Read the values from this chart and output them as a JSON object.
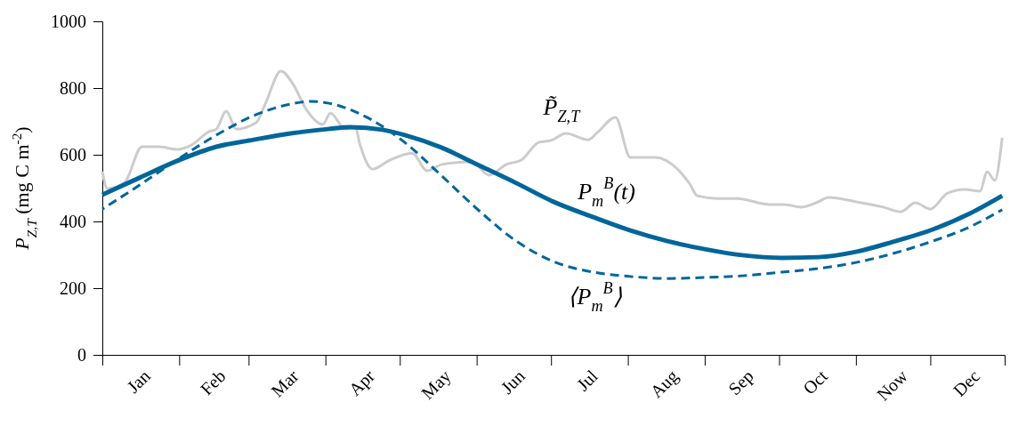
{
  "chart_data": {
    "type": "line",
    "ylabel": "P$_{Z,T}$ (mg C m$^{-2}$)",
    "xlim": [
      "--01-01",
      "--12-31"
    ],
    "ylim": [
      0,
      1000
    ],
    "yticks": [
      0,
      200,
      400,
      600,
      800,
      1000
    ],
    "xticks": [
      {
        "value": "--01-01",
        "label": null
      },
      {
        "value": "--01-16",
        "label": "Jan"
      },
      {
        "value": "--02-01",
        "label": null
      },
      {
        "value": "--02-15",
        "label": "Feb"
      },
      {
        "value": "--03-01",
        "label": null
      },
      {
        "value": "--03-16",
        "label": "Mar"
      },
      {
        "value": "--04-01",
        "label": null
      },
      {
        "value": "--04-16",
        "label": "Apr"
      },
      {
        "value": "--05-01",
        "label": null
      },
      {
        "value": "--05-16",
        "label": "May"
      },
      {
        "value": "--06-01",
        "label": null
      },
      {
        "value": "--06-16",
        "label": "Jun"
      },
      {
        "value": "--07-01",
        "label": null
      },
      {
        "value": "--07-16",
        "label": "Jul"
      },
      {
        "value": "--08-01",
        "label": null
      },
      {
        "value": "--08-16",
        "label": "Aug"
      },
      {
        "value": "--09-01",
        "label": null
      },
      {
        "value": "--09-16",
        "label": "Sep"
      },
      {
        "value": "--10-01",
        "label": null
      },
      {
        "value": "--10-16",
        "label": "Oct"
      },
      {
        "value": "--11-01",
        "label": null
      },
      {
        "value": "--11-16",
        "label": "Now"
      },
      {
        "value": "--12-01",
        "label": null
      },
      {
        "value": "--12-16",
        "label": "Dec"
      }
    ],
    "marker": "none",
    "series": [
      {
        "name": "P̃$_{Z,T}$",
        "color": "#cccccc",
        "line_style": "solid",
        "x": [
          "--01-01",
          "--01-03",
          "--01-10",
          "--01-17",
          "--01-24",
          "--01-31",
          "--02-06",
          "--02-13",
          "--02-16",
          "--02-20",
          "--02-24",
          "--03-04",
          "--03-08",
          "--03-14",
          "--03-19",
          "--03-24",
          "--03-31",
          "--04-03",
          "--04-09",
          "--04-13",
          "--04-15",
          "--04-20",
          "--04-27",
          "--05-06",
          "--05-12",
          "--05-18",
          "--05-30",
          "--06-06",
          "--06-13",
          "--06-19",
          "--06-26",
          "--07-01",
          "--07-07",
          "--07-16",
          "--07-20",
          "--07-27",
          "--08-02",
          "--08-12",
          "--08-21",
          "--08-26",
          "--08-29",
          "--09-06",
          "--09-14",
          "--09-27",
          "--10-03",
          "--10-10",
          "--10-16",
          "--10-21",
          "--11-01",
          "--11-12",
          "--11-19",
          "--11-25",
          "--12-01",
          "--12-08",
          "--12-15",
          "--12-21",
          "--12-24",
          "--12-27",
          "--12-30"
        ],
        "values": [
          549,
          499,
          517,
          624,
          624,
          616,
          629,
          669,
          677,
          731,
          677,
          696,
          757,
          851,
          811,
          739,
          691,
          725,
          677,
          683,
          629,
          557,
          584,
          605,
          552,
          571,
          579,
          539,
          571,
          584,
          637,
          643,
          664,
          645,
          669,
          712,
          592,
          592,
          557,
          512,
          477,
          469,
          469,
          451,
          451,
          443,
          456,
          472,
          459,
          443,
          429,
          456,
          437,
          485,
          496,
          491,
          549,
          523,
          651
        ]
      },
      {
        "name": "⟨P$_{m}$$^{B}$⟩",
        "color": "#00669a",
        "line_style": "dashed",
        "x": [
          "--01-01",
          "--01-16",
          "--01-31",
          "--02-16",
          "--03-03",
          "--03-18",
          "--03-26",
          "--04-02",
          "--04-17",
          "--05-03",
          "--05-18",
          "--06-02",
          "--06-17",
          "--07-02",
          "--07-18",
          "--08-02",
          "--08-17",
          "--09-01",
          "--09-16",
          "--10-02",
          "--10-17",
          "--11-01",
          "--11-16",
          "--12-02",
          "--12-17",
          "--12-30"
        ],
        "values": [
          437,
          509,
          584,
          659,
          717,
          752,
          760,
          755,
          715,
          637,
          536,
          432,
          341,
          280,
          248,
          235,
          229,
          232,
          237,
          248,
          259,
          277,
          304,
          341,
          384,
          435
        ]
      },
      {
        "name": "P$_{m}$$^{B}$(t)",
        "color": "#00669a",
        "line_style": "solid",
        "x": [
          "--01-01",
          "--01-16",
          "--01-31",
          "--02-16",
          "--03-03",
          "--03-18",
          "--04-02",
          "--04-11",
          "--04-24",
          "--05-03",
          "--05-18",
          "--06-02",
          "--06-17",
          "--07-02",
          "--07-18",
          "--08-02",
          "--08-17",
          "--09-01",
          "--09-16",
          "--10-02",
          "--10-17",
          "--11-01",
          "--11-16",
          "--12-02",
          "--12-17",
          "--12-30"
        ],
        "values": [
          480,
          531,
          581,
          624,
          645,
          664,
          677,
          683,
          675,
          659,
          621,
          568,
          515,
          459,
          413,
          373,
          341,
          317,
          299,
          291,
          293,
          309,
          339,
          376,
          424,
          477
        ]
      }
    ]
  }
}
